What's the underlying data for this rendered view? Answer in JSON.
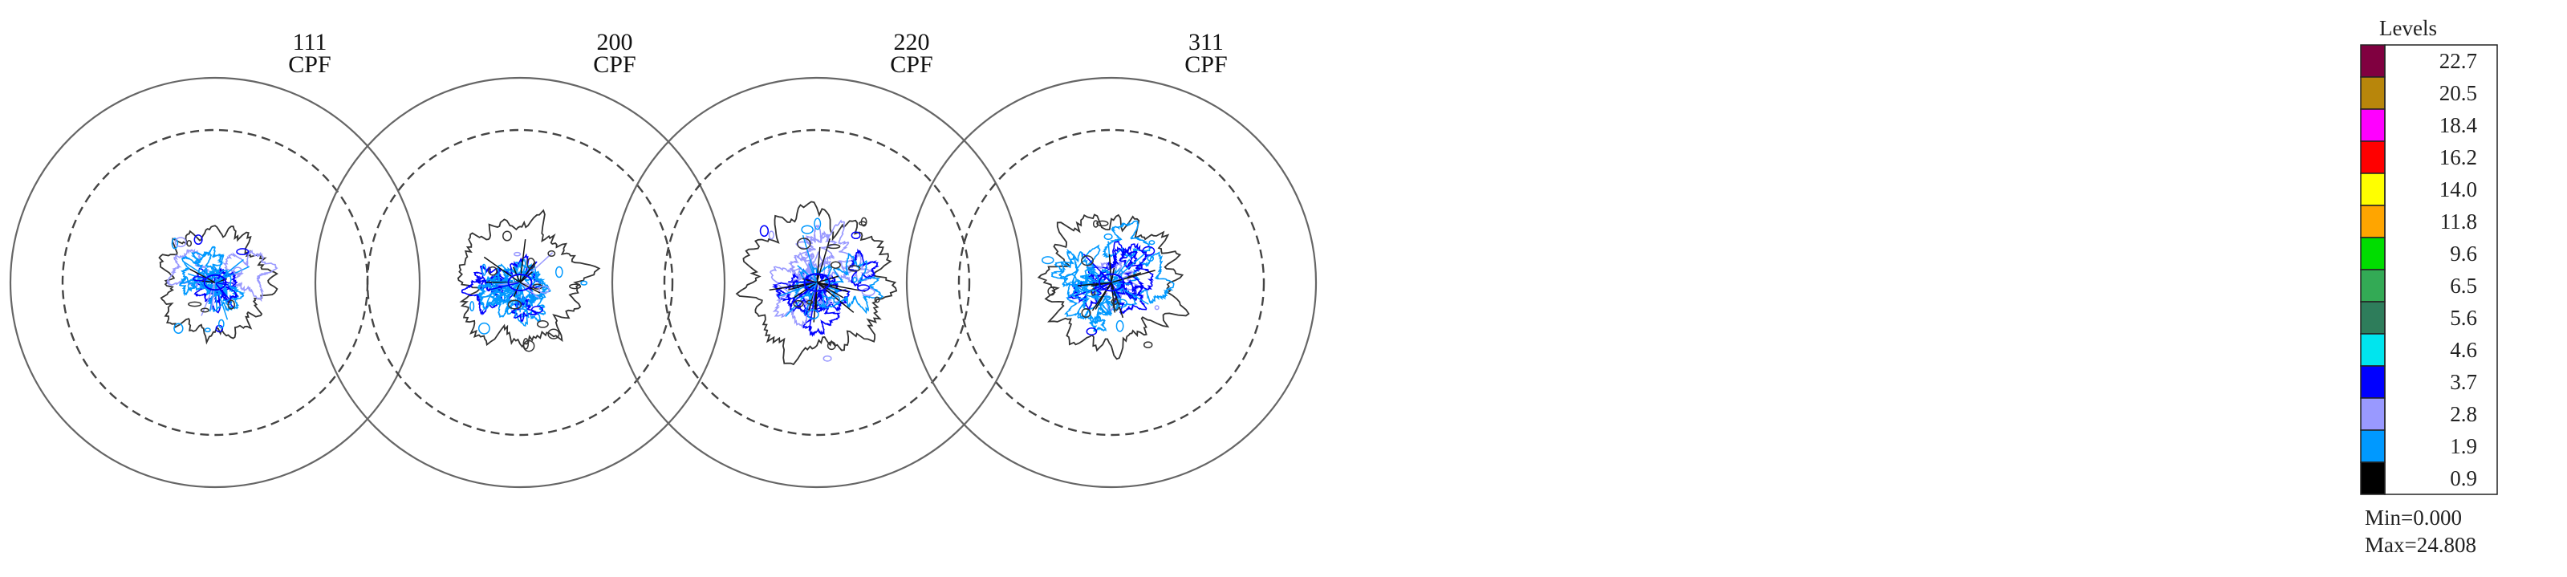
{
  "chart_data": {
    "type": "other",
    "description_type": "pole-figure contour plots",
    "plots": [
      {
        "plane": "111",
        "label": "CPF",
        "spread": 0.44,
        "density": 0.55,
        "seed": 11
      },
      {
        "plane": "200",
        "label": "CPF",
        "spread": 0.5,
        "density": 0.75,
        "seed": 23
      },
      {
        "plane": "220",
        "label": "CPF",
        "spread": 0.58,
        "density": 0.95,
        "seed": 37
      },
      {
        "plane": "311",
        "label": "CPF",
        "spread": 0.53,
        "density": 0.85,
        "seed": 51
      }
    ],
    "legend": {
      "title": "Levels",
      "levels": [
        {
          "value": "22.7",
          "color": "#800040"
        },
        {
          "value": "20.5",
          "color": "#b8860b"
        },
        {
          "value": "18.4",
          "color": "#ff00ff"
        },
        {
          "value": "16.2",
          "color": "#ff0000"
        },
        {
          "value": "14.0",
          "color": "#ffff00"
        },
        {
          "value": "11.8",
          "color": "#ffa500"
        },
        {
          "value": "9.6",
          "color": "#00dd00"
        },
        {
          "value": "6.5",
          "color": "#33aa55"
        },
        {
          "value": "5.6",
          "color": "#2e7d5b"
        },
        {
          "value": "4.6",
          "color": "#00e5ee"
        },
        {
          "value": "3.7",
          "color": "#0000ff"
        },
        {
          "value": "2.8",
          "color": "#9999ff"
        },
        {
          "value": "1.9",
          "color": "#0099ff"
        },
        {
          "value": "0.9",
          "color": "#000000"
        }
      ],
      "min_text": "Min=0.000",
      "max_text": "Max=24.808"
    }
  }
}
